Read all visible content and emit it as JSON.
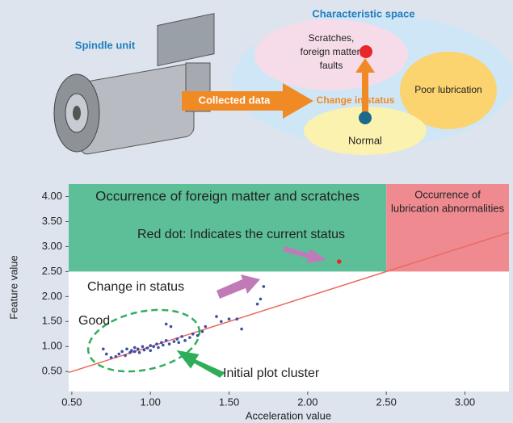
{
  "diagram": {
    "spindle_label": "Spindle unit",
    "characteristic_space": "Characteristic space",
    "collected_data": "Collected data",
    "change_in_status": "Change in status",
    "scratches": [
      "Scratches,",
      "foreign matter,",
      "faults"
    ],
    "poor_lubrication": "Poor lubrication",
    "normal": "Normal"
  },
  "chart_data": {
    "type": "scatter",
    "xlabel": "Acceleration value",
    "ylabel": "Feature value",
    "xlim": [
      0.48,
      3.28
    ],
    "ylim": [
      0.1,
      4.25
    ],
    "xticks": [
      {
        "value": 0.5,
        "label": "0.50"
      },
      {
        "value": 1,
        "label": "1.00"
      },
      {
        "value": 1.5,
        "label": "1.50"
      },
      {
        "value": 2,
        "label": "2.00"
      },
      {
        "value": 2.5,
        "label": "2.50"
      },
      {
        "value": 3,
        "label": "3.00"
      }
    ],
    "yticks": [
      {
        "value": 0.5,
        "label": "0.50"
      },
      {
        "value": 1,
        "label": "1.00"
      },
      {
        "value": 1.5,
        "label": "1.50"
      },
      {
        "value": 2,
        "label": "2.00"
      },
      {
        "value": 2.5,
        "label": "2.50"
      },
      {
        "value": 3,
        "label": "3.00"
      },
      {
        "value": 3.5,
        "label": "3.50"
      },
      {
        "value": 4,
        "label": "4.00"
      }
    ],
    "regions": [
      {
        "label": [
          "Occurrence of foreign matter and scratches"
        ],
        "color": "#5cbf98",
        "x": [
          0.48,
          2.5
        ],
        "y": [
          2.5,
          4.25
        ]
      },
      {
        "label": [
          "Occurrence of",
          "lubrication abnormalities"
        ],
        "color": "#ee8a90",
        "x": [
          2.5,
          3.28
        ],
        "y": [
          2.5,
          4.25
        ]
      }
    ],
    "reference_line": {
      "color": "#ec6a5e",
      "x": [
        0.48,
        3.28
      ],
      "y": [
        0.48,
        3.28
      ]
    },
    "annotations": {
      "current": "Red dot: Indicates the current status",
      "change": "Change in status",
      "good": "Good",
      "cluster": "Initial plot cluster"
    },
    "series": [
      {
        "color": "#3b4fa3",
        "x": [
          0.7,
          0.72,
          0.75,
          0.78,
          0.8,
          0.82,
          0.84,
          0.85,
          0.87,
          0.88,
          0.9,
          0.9,
          0.92,
          0.93,
          0.95,
          0.96,
          0.98,
          1.0,
          1.0,
          1.02,
          1.04,
          1.05,
          1.07,
          1.08,
          1.1,
          1.1,
          1.12,
          1.13,
          1.15,
          1.17,
          1.18,
          1.2,
          1.22,
          1.25,
          1.27,
          1.3,
          1.33,
          1.35,
          1.42,
          1.45,
          1.5,
          1.55,
          1.58,
          1.68,
          1.7,
          1.72
        ],
        "y": [
          0.95,
          0.85,
          0.78,
          0.8,
          0.85,
          0.9,
          0.82,
          0.95,
          0.88,
          0.92,
          0.9,
          0.98,
          0.95,
          0.88,
          1.0,
          0.93,
          0.97,
          1.02,
          0.92,
          1.0,
          1.05,
          0.98,
          1.08,
          1.03,
          1.12,
          1.45,
          1.05,
          1.4,
          1.1,
          1.15,
          1.08,
          1.2,
          1.12,
          1.18,
          1.25,
          1.22,
          1.3,
          1.4,
          1.6,
          1.5,
          1.55,
          1.55,
          1.35,
          1.85,
          1.95,
          2.2
        ]
      },
      {
        "color": "#e8262b",
        "x": [
          2.2
        ],
        "y": [
          2.7
        ]
      }
    ]
  }
}
